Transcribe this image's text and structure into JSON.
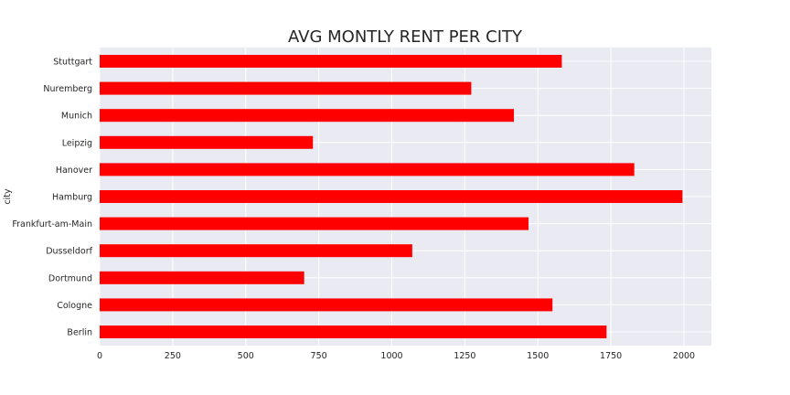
{
  "chart_data": {
    "type": "bar",
    "orientation": "horizontal",
    "title": "AVG MONTLY RENT PER CITY",
    "xlabel": "",
    "ylabel": "city",
    "categories": [
      "Berlin",
      "Cologne",
      "Dortmund",
      "Dusseldorf",
      "Frankfurt-am-Main",
      "Hamburg",
      "Hanover",
      "Leipzig",
      "Munich",
      "Nuremberg",
      "Stuttgart"
    ],
    "values": [
      1735,
      1550,
      700,
      1070,
      1468,
      1995,
      1830,
      730,
      1418,
      1272,
      1582
    ],
    "xlim": [
      0,
      2100
    ],
    "xticks": [
      0,
      250,
      500,
      750,
      1000,
      1250,
      1500,
      1750,
      2000
    ],
    "grid": true,
    "colors": {
      "bar": "#ff0000",
      "plot_background": "#eaeaf2",
      "grid": "#ffffff"
    }
  }
}
